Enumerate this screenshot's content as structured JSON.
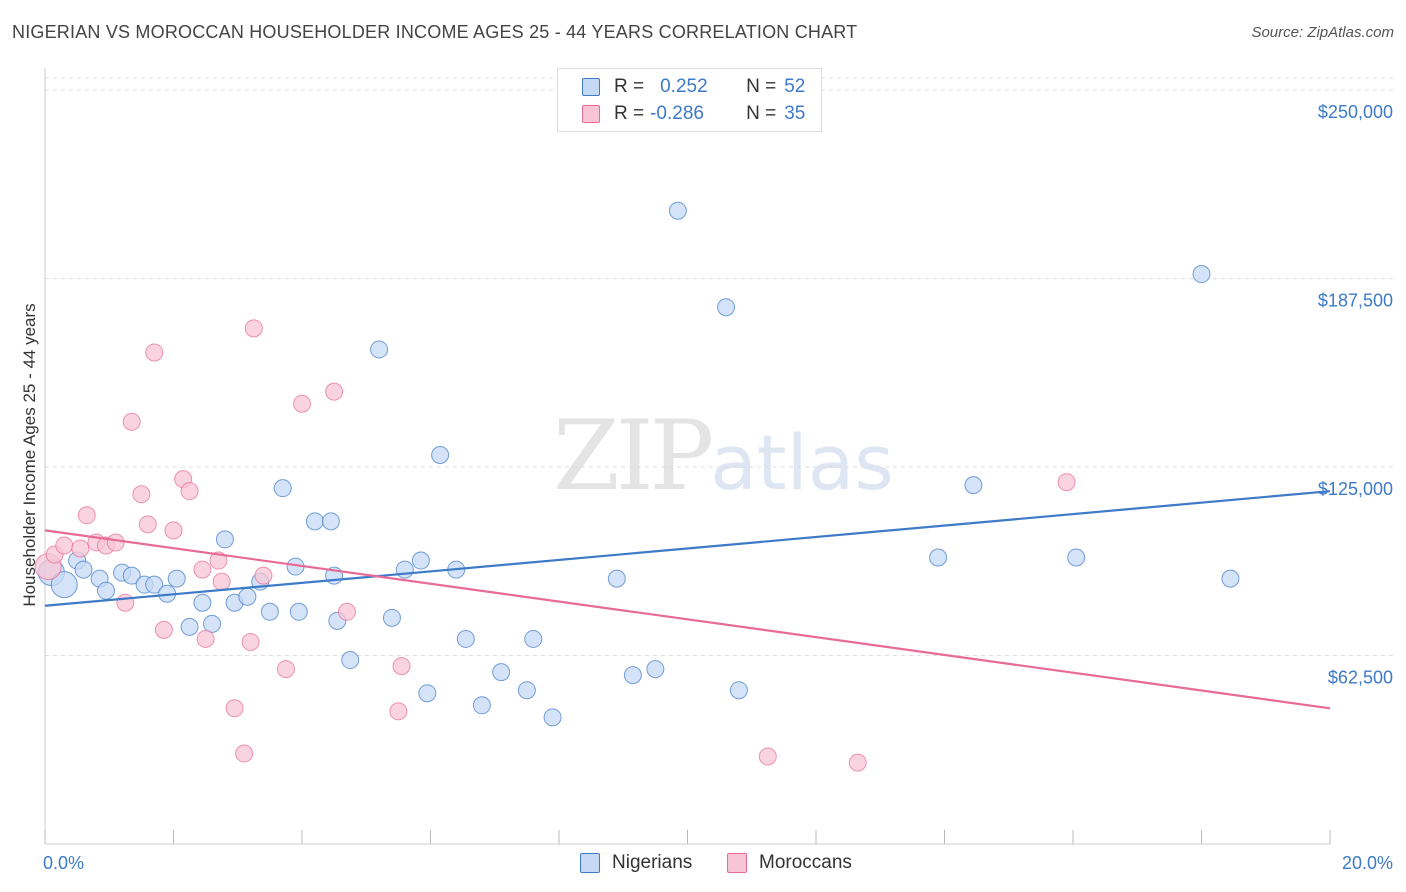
{
  "title": "NIGERIAN VS MOROCCAN HOUSEHOLDER INCOME AGES 25 - 44 YEARS CORRELATION CHART",
  "source": "Source: ZipAtlas.com",
  "watermark": {
    "zip": "ZIP",
    "atlas": "atlas"
  },
  "colors": {
    "blue": "#3d7ac8",
    "blue_fill": "#c5d9f4",
    "pink": "#e86a97",
    "pink_fill": "#f7c5d5",
    "grid": "#dddddd"
  },
  "legend": {
    "rows": [
      {
        "r_label": "R =",
        "r_value": "0.252",
        "n_label": "N =",
        "n_value": "52"
      },
      {
        "r_label": "R =",
        "r_value": "-0.286",
        "n_label": "N =",
        "n_value": "35"
      }
    ]
  },
  "bottom_legend": {
    "series1": "Nigerians",
    "series2": "Moroccans"
  },
  "chart_data": {
    "type": "scatter",
    "title": "NIGERIAN VS MOROCCAN HOUSEHOLDER INCOME AGES 25 - 44 YEARS CORRELATION CHART",
    "xlabel": "",
    "ylabel": "Householder Income Ages 25 - 44 years",
    "xlim": [
      0,
      20
    ],
    "ylim": [
      0,
      256000
    ],
    "x_tick_labels": [
      "0.0%",
      "20.0%"
    ],
    "y_ticks": [
      62500,
      125000,
      187500,
      250000
    ],
    "y_tick_labels": [
      "$62,500",
      "$125,000",
      "$187,500",
      "$250,000"
    ],
    "grid": true,
    "legend_position": "top-center",
    "series": [
      {
        "name": "Nigerians",
        "color": "#3d7ac8",
        "trend": {
          "x": [
            0,
            20
          ],
          "y": [
            79000,
            117000
          ]
        },
        "points": [
          {
            "x": 0.1,
            "y": 90000,
            "big": true
          },
          {
            "x": 0.3,
            "y": 86000,
            "big": true
          },
          {
            "x": 0.5,
            "y": 94000
          },
          {
            "x": 0.6,
            "y": 91000
          },
          {
            "x": 0.85,
            "y": 88000
          },
          {
            "x": 0.95,
            "y": 84000
          },
          {
            "x": 1.2,
            "y": 90000
          },
          {
            "x": 1.35,
            "y": 89000
          },
          {
            "x": 1.55,
            "y": 86000
          },
          {
            "x": 1.7,
            "y": 86000
          },
          {
            "x": 1.9,
            "y": 83000
          },
          {
            "x": 2.05,
            "y": 88000
          },
          {
            "x": 2.25,
            "y": 72000
          },
          {
            "x": 2.45,
            "y": 80000
          },
          {
            "x": 2.6,
            "y": 73000
          },
          {
            "x": 2.8,
            "y": 101000
          },
          {
            "x": 2.95,
            "y": 80000
          },
          {
            "x": 3.15,
            "y": 82000
          },
          {
            "x": 3.35,
            "y": 87000
          },
          {
            "x": 3.5,
            "y": 77000
          },
          {
            "x": 3.7,
            "y": 118000
          },
          {
            "x": 3.9,
            "y": 92000
          },
          {
            "x": 3.95,
            "y": 77000
          },
          {
            "x": 4.2,
            "y": 107000
          },
          {
            "x": 4.45,
            "y": 107000
          },
          {
            "x": 4.55,
            "y": 74000
          },
          {
            "x": 4.5,
            "y": 89000
          },
          {
            "x": 4.75,
            "y": 61000
          },
          {
            "x": 5.2,
            "y": 164000
          },
          {
            "x": 5.4,
            "y": 75000
          },
          {
            "x": 5.6,
            "y": 91000
          },
          {
            "x": 5.85,
            "y": 94000
          },
          {
            "x": 5.95,
            "y": 50000
          },
          {
            "x": 6.15,
            "y": 129000
          },
          {
            "x": 6.4,
            "y": 91000
          },
          {
            "x": 6.55,
            "y": 68000
          },
          {
            "x": 6.8,
            "y": 46000
          },
          {
            "x": 7.1,
            "y": 57000
          },
          {
            "x": 7.5,
            "y": 51000
          },
          {
            "x": 7.6,
            "y": 68000
          },
          {
            "x": 7.9,
            "y": 42000
          },
          {
            "x": 8.9,
            "y": 88000
          },
          {
            "x": 9.15,
            "y": 56000
          },
          {
            "x": 9.5,
            "y": 58000
          },
          {
            "x": 9.85,
            "y": 210000
          },
          {
            "x": 10.6,
            "y": 178000
          },
          {
            "x": 10.8,
            "y": 51000
          },
          {
            "x": 13.9,
            "y": 95000
          },
          {
            "x": 14.45,
            "y": 119000
          },
          {
            "x": 16.05,
            "y": 95000
          },
          {
            "x": 18.0,
            "y": 189000
          },
          {
            "x": 18.45,
            "y": 88000
          }
        ]
      },
      {
        "name": "Moroccans",
        "color": "#e86a97",
        "trend": {
          "x": [
            0,
            20
          ],
          "y": [
            104000,
            45000
          ]
        },
        "points": [
          {
            "x": 0.05,
            "y": 92000,
            "big": true
          },
          {
            "x": 0.15,
            "y": 96000
          },
          {
            "x": 0.3,
            "y": 99000
          },
          {
            "x": 0.55,
            "y": 98000
          },
          {
            "x": 0.65,
            "y": 109000
          },
          {
            "x": 0.8,
            "y": 100000
          },
          {
            "x": 0.95,
            "y": 99000
          },
          {
            "x": 1.1,
            "y": 100000
          },
          {
            "x": 1.25,
            "y": 80000
          },
          {
            "x": 1.35,
            "y": 140000
          },
          {
            "x": 1.5,
            "y": 116000
          },
          {
            "x": 1.6,
            "y": 106000
          },
          {
            "x": 1.7,
            "y": 163000
          },
          {
            "x": 1.85,
            "y": 71000
          },
          {
            "x": 2.0,
            "y": 104000
          },
          {
            "x": 2.15,
            "y": 121000
          },
          {
            "x": 2.25,
            "y": 117000
          },
          {
            "x": 2.45,
            "y": 91000
          },
          {
            "x": 2.5,
            "y": 68000
          },
          {
            "x": 2.7,
            "y": 94000
          },
          {
            "x": 2.75,
            "y": 87000
          },
          {
            "x": 2.95,
            "y": 45000
          },
          {
            "x": 3.1,
            "y": 30000
          },
          {
            "x": 3.2,
            "y": 67000
          },
          {
            "x": 3.25,
            "y": 171000
          },
          {
            "x": 3.4,
            "y": 89000
          },
          {
            "x": 3.75,
            "y": 58000
          },
          {
            "x": 4.0,
            "y": 146000
          },
          {
            "x": 4.5,
            "y": 150000
          },
          {
            "x": 4.7,
            "y": 77000
          },
          {
            "x": 5.5,
            "y": 44000
          },
          {
            "x": 5.55,
            "y": 59000
          },
          {
            "x": 11.25,
            "y": 29000
          },
          {
            "x": 12.65,
            "y": 27000
          },
          {
            "x": 15.9,
            "y": 120000
          }
        ]
      }
    ]
  }
}
